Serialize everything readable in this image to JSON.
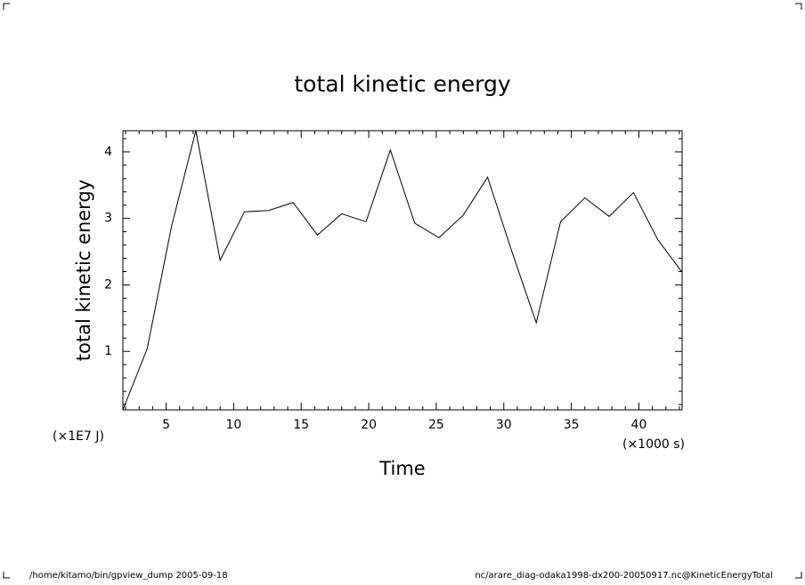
{
  "chart_data": {
    "type": "line",
    "title": "total kinetic energy",
    "x_label": "Time",
    "y_label": "total kinetic energy",
    "x_unit_label": "(×1000 s)",
    "y_unit_label": "(×1E7 J)",
    "x": [
      1.8,
      3.6,
      5.4,
      7.2,
      9.0,
      10.8,
      12.6,
      14.4,
      16.2,
      18.0,
      19.8,
      21.6,
      23.4,
      25.2,
      27.0,
      28.8,
      30.6,
      32.4,
      34.2,
      36.0,
      37.8,
      39.6,
      41.4,
      43.2
    ],
    "series": [
      {
        "name": "total kinetic energy",
        "color": "#000000",
        "values": [
          0.12,
          1.04,
          2.88,
          4.32,
          2.37,
          3.1,
          3.12,
          3.24,
          2.75,
          3.07,
          2.95,
          4.03,
          2.93,
          2.71,
          3.05,
          3.62,
          2.5,
          1.43,
          2.95,
          3.31,
          3.03,
          3.39,
          2.68,
          2.19
        ]
      }
    ],
    "xlim": [
      1.8,
      43.2
    ],
    "ylim": [
      0.12,
      4.32
    ],
    "xticks": [
      5,
      10,
      15,
      20,
      25,
      30,
      35,
      40
    ],
    "yticks": [
      1,
      2,
      3,
      4
    ],
    "xminorticks": [
      2,
      3,
      4,
      6,
      7,
      8,
      9,
      11,
      12,
      13,
      14,
      16,
      17,
      18,
      19,
      21,
      22,
      23,
      24,
      26,
      27,
      28,
      29,
      31,
      32,
      33,
      34,
      36,
      37,
      38,
      39,
      41,
      42,
      43
    ],
    "yminorticks": [
      0.2,
      0.4,
      0.6,
      0.8,
      1.2,
      1.4,
      1.6,
      1.8,
      2.2,
      2.4,
      2.6,
      2.8,
      3.2,
      3.4,
      3.6,
      3.8,
      4.2
    ],
    "grid": false
  },
  "footer": {
    "left": "/home/kitamo/bin/gpview_dump  2005-09-18",
    "right": "nc/arare_diag-odaka1998-dx200-20050917.nc@KineticEnergyTotal"
  }
}
